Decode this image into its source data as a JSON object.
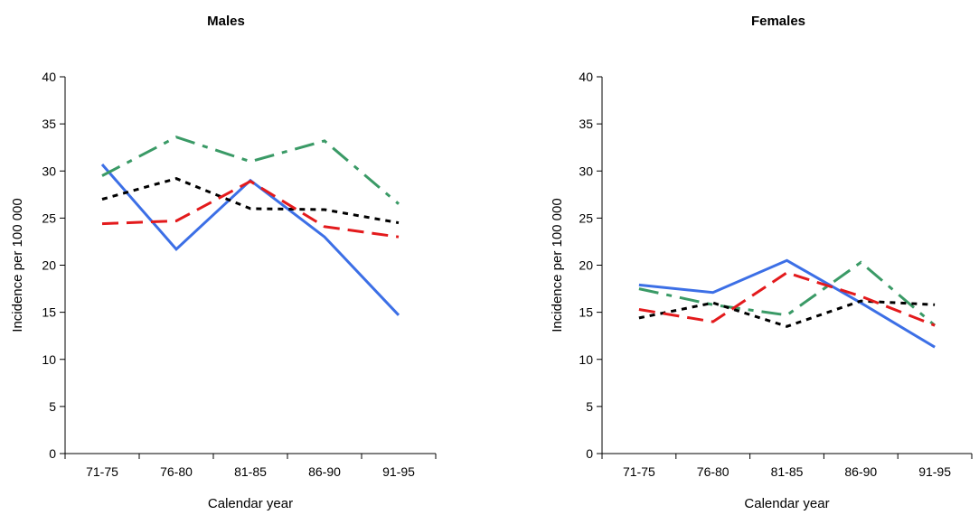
{
  "chart_data": [
    {
      "type": "line",
      "title": "Males",
      "xlabel": "Calendar year",
      "ylabel": "Incidence per 100 000",
      "categories": [
        "71-75",
        "76-80",
        "81-85",
        "86-90",
        "91-95"
      ],
      "y_ticks": [
        "0",
        "5",
        "10",
        "15",
        "20",
        "25",
        "30",
        "35",
        "40"
      ],
      "ylim": [
        0,
        40
      ],
      "grid": false,
      "series": [
        {
          "color": "#3c6fe6",
          "style": "solid",
          "values": [
            30.7,
            21.7,
            29.0,
            23.0,
            14.7
          ]
        },
        {
          "color": "#3a9a66",
          "style": "dash-dot",
          "values": [
            29.5,
            33.6,
            31.0,
            33.2,
            26.5
          ]
        },
        {
          "color": "#000000",
          "style": "dotted",
          "values": [
            27.0,
            29.2,
            26.0,
            25.9,
            24.5
          ]
        },
        {
          "color": "#e31a1c",
          "style": "dashed",
          "values": [
            24.4,
            24.7,
            28.9,
            24.1,
            23.0
          ]
        }
      ]
    },
    {
      "type": "line",
      "title": "Females",
      "xlabel": "Calendar year",
      "ylabel": "Incidence per 100 000",
      "categories": [
        "71-75",
        "76-80",
        "81-85",
        "86-90",
        "91-95"
      ],
      "y_ticks": [
        "0",
        "5",
        "10",
        "15",
        "20",
        "25",
        "30",
        "35",
        "40"
      ],
      "ylim": [
        0,
        40
      ],
      "grid": false,
      "series": [
        {
          "color": "#3c6fe6",
          "style": "solid",
          "values": [
            17.9,
            17.1,
            20.5,
            16.0,
            11.3
          ]
        },
        {
          "color": "#3a9a66",
          "style": "dash-dot",
          "values": [
            17.5,
            15.8,
            14.7,
            20.3,
            13.6
          ]
        },
        {
          "color": "#000000",
          "style": "dotted",
          "values": [
            14.4,
            16.0,
            13.5,
            16.2,
            15.8
          ]
        },
        {
          "color": "#e31a1c",
          "style": "dashed",
          "values": [
            15.3,
            14.0,
            19.2,
            16.7,
            13.6
          ]
        }
      ]
    }
  ]
}
